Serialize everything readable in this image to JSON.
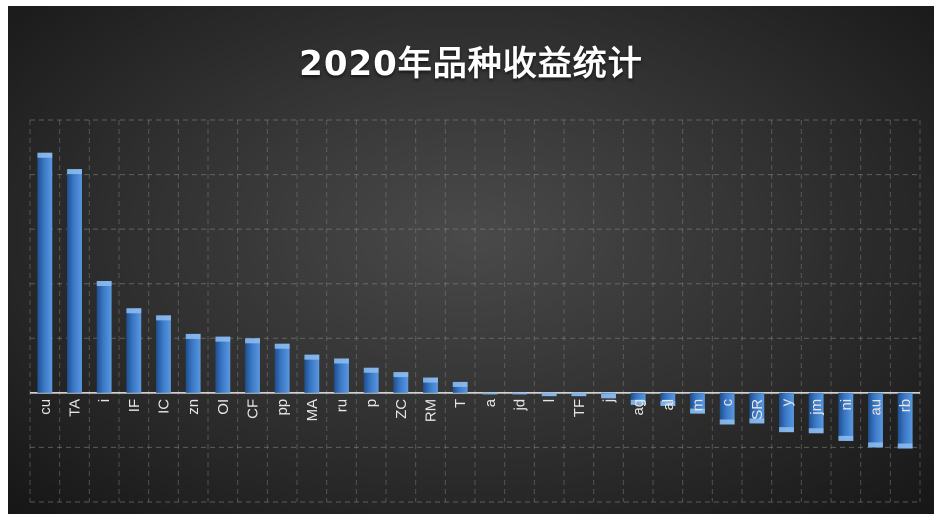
{
  "chart_data": {
    "type": "bar",
    "title": "2020年品种收益统计",
    "categories": [
      "cu",
      "TA",
      "i",
      "IF",
      "IC",
      "zn",
      "OI",
      "CF",
      "pp",
      "MA",
      "ru",
      "p",
      "ZC",
      "RM",
      "T",
      "a",
      "jd",
      "l",
      "TF",
      "j",
      "ag",
      "al",
      "m",
      "c",
      "SR",
      "y",
      "jm",
      "ni",
      "au",
      "rb"
    ],
    "values": [
      4.4,
      4.1,
      2.05,
      1.55,
      1.42,
      1.08,
      1.03,
      1.0,
      0.9,
      0.7,
      0.63,
      0.46,
      0.38,
      0.28,
      0.2,
      -0.02,
      -0.02,
      -0.06,
      -0.06,
      -0.1,
      -0.22,
      -0.24,
      -0.38,
      -0.58,
      -0.56,
      -0.72,
      -0.74,
      -0.88,
      -1.0,
      -1.02
    ],
    "ylim": [
      -2,
      5
    ],
    "xlabel": "",
    "ylabel": "",
    "grid": true,
    "legend": "none"
  },
  "colors": {
    "bar": "#3b79c7",
    "bar_top": "#8fbef0",
    "gridline": "#8a8a8a",
    "background": "#3a3a3a",
    "title": "#ffffff"
  }
}
